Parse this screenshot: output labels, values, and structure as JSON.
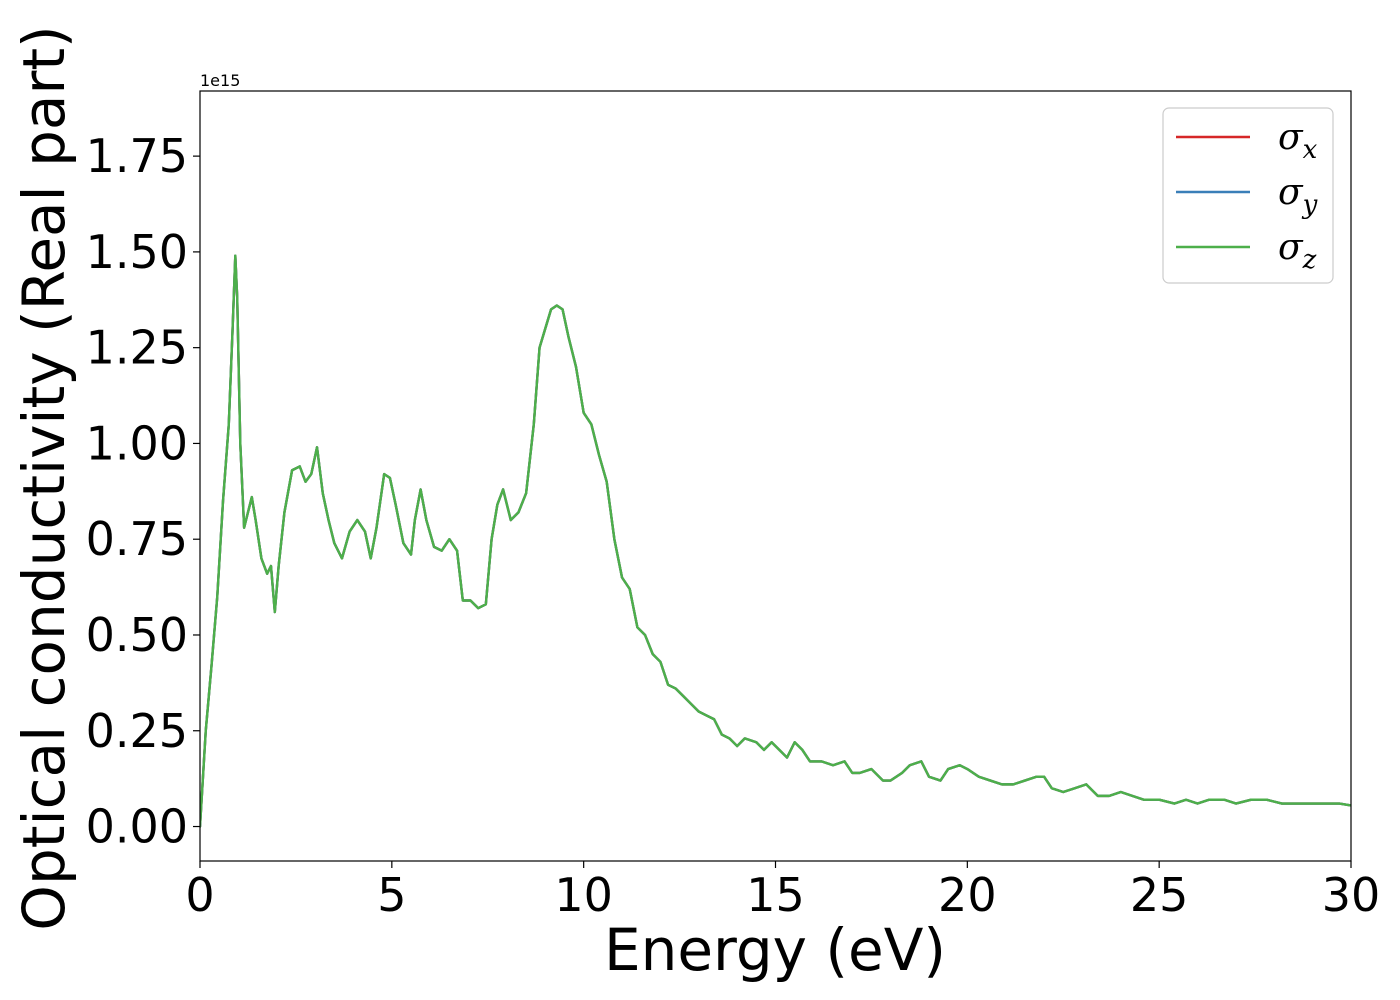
{
  "chart_data": {
    "type": "line",
    "title": "",
    "xlabel": "Energy (eV)",
    "ylabel": "Optical conductivity (Real part)",
    "y_offset_label": "1e15",
    "xlim": [
      0,
      30
    ],
    "ylim": [
      -0.09,
      1.92
    ],
    "x_ticks": [
      0,
      5,
      10,
      15,
      20,
      25,
      30
    ],
    "x_tick_labels": [
      "0",
      "5",
      "10",
      "15",
      "20",
      "25",
      "30"
    ],
    "y_ticks": [
      0.0,
      0.25,
      0.5,
      0.75,
      1.0,
      1.25,
      1.5,
      1.75
    ],
    "y_tick_labels": [
      "0.00",
      "0.25",
      "0.50",
      "0.75",
      "1.00",
      "1.25",
      "1.50",
      "1.75"
    ],
    "grid": false,
    "legend_position": "top-right",
    "legend": [
      {
        "symbol": "σ",
        "subscript": "x",
        "color": "#d62728"
      },
      {
        "symbol": "σ",
        "subscript": "y",
        "color": "#3a7fb8"
      },
      {
        "symbol": "σ",
        "subscript": "z",
        "color": "#4daf4a"
      }
    ],
    "x": [
      0,
      0.15,
      0.3,
      0.45,
      0.6,
      0.75,
      0.85,
      0.92,
      0.97,
      1.05,
      1.15,
      1.25,
      1.35,
      1.45,
      1.6,
      1.75,
      1.85,
      1.95,
      2.05,
      2.2,
      2.4,
      2.6,
      2.75,
      2.9,
      3.05,
      3.2,
      3.35,
      3.5,
      3.7,
      3.9,
      4.1,
      4.3,
      4.45,
      4.6,
      4.8,
      4.95,
      5.1,
      5.3,
      5.5,
      5.6,
      5.75,
      5.9,
      6.1,
      6.3,
      6.5,
      6.7,
      6.85,
      7.05,
      7.25,
      7.45,
      7.6,
      7.75,
      7.9,
      8.1,
      8.3,
      8.5,
      8.7,
      8.85,
      9.0,
      9.15,
      9.3,
      9.45,
      9.6,
      9.8,
      10.0,
      10.2,
      10.4,
      10.6,
      10.8,
      11.0,
      11.2,
      11.4,
      11.6,
      11.8,
      12.0,
      12.2,
      12.4,
      12.6,
      12.8,
      13.0,
      13.2,
      13.4,
      13.6,
      13.8,
      14.0,
      14.2,
      14.5,
      14.7,
      14.9,
      15.1,
      15.3,
      15.5,
      15.7,
      15.9,
      16.2,
      16.5,
      16.8,
      17.0,
      17.2,
      17.5,
      17.8,
      18.0,
      18.3,
      18.5,
      18.8,
      19.0,
      19.3,
      19.5,
      19.8,
      20.0,
      20.3,
      20.6,
      20.9,
      21.2,
      21.5,
      21.8,
      22.0,
      22.2,
      22.5,
      22.8,
      23.1,
      23.4,
      23.7,
      24.0,
      24.3,
      24.6,
      25.0,
      25.4,
      25.7,
      26.0,
      26.3,
      26.7,
      27.0,
      27.4,
      27.8,
      28.2,
      28.6,
      29.0,
      29.4,
      29.7,
      30.0
    ],
    "series": [
      {
        "name": "σx",
        "color": "#d62728",
        "values": [
          0.0,
          0.25,
          0.42,
          0.6,
          0.85,
          1.05,
          1.3,
          1.49,
          1.38,
          1.0,
          0.78,
          0.82,
          0.86,
          0.8,
          0.7,
          0.66,
          0.68,
          0.56,
          0.68,
          0.82,
          0.93,
          0.94,
          0.9,
          0.92,
          0.99,
          0.87,
          0.8,
          0.74,
          0.7,
          0.77,
          0.8,
          0.77,
          0.7,
          0.78,
          0.92,
          0.91,
          0.84,
          0.74,
          0.71,
          0.8,
          0.88,
          0.8,
          0.73,
          0.72,
          0.75,
          0.72,
          0.59,
          0.59,
          0.57,
          0.58,
          0.75,
          0.84,
          0.88,
          0.8,
          0.82,
          0.87,
          1.05,
          1.25,
          1.3,
          1.35,
          1.36,
          1.35,
          1.28,
          1.2,
          1.08,
          1.05,
          0.97,
          0.9,
          0.75,
          0.65,
          0.62,
          0.52,
          0.5,
          0.45,
          0.43,
          0.37,
          0.36,
          0.34,
          0.32,
          0.3,
          0.29,
          0.28,
          0.24,
          0.23,
          0.21,
          0.23,
          0.22,
          0.2,
          0.22,
          0.2,
          0.18,
          0.22,
          0.2,
          0.17,
          0.17,
          0.16,
          0.17,
          0.14,
          0.14,
          0.15,
          0.12,
          0.12,
          0.14,
          0.16,
          0.17,
          0.13,
          0.12,
          0.15,
          0.16,
          0.15,
          0.13,
          0.12,
          0.11,
          0.11,
          0.12,
          0.13,
          0.13,
          0.1,
          0.09,
          0.1,
          0.11,
          0.08,
          0.08,
          0.09,
          0.08,
          0.07,
          0.07,
          0.06,
          0.07,
          0.06,
          0.07,
          0.07,
          0.06,
          0.07,
          0.07,
          0.06,
          0.06,
          0.06,
          0.06,
          0.06,
          0.055
        ]
      },
      {
        "name": "σy",
        "color": "#3a7fb8",
        "values": [
          0.0,
          0.25,
          0.42,
          0.6,
          0.85,
          1.05,
          1.3,
          1.49,
          1.38,
          1.0,
          0.78,
          0.82,
          0.86,
          0.8,
          0.7,
          0.66,
          0.68,
          0.56,
          0.68,
          0.82,
          0.93,
          0.94,
          0.9,
          0.92,
          0.99,
          0.87,
          0.8,
          0.74,
          0.7,
          0.77,
          0.8,
          0.77,
          0.7,
          0.78,
          0.92,
          0.91,
          0.84,
          0.74,
          0.71,
          0.8,
          0.88,
          0.8,
          0.73,
          0.72,
          0.75,
          0.72,
          0.59,
          0.59,
          0.57,
          0.58,
          0.75,
          0.84,
          0.88,
          0.8,
          0.82,
          0.87,
          1.05,
          1.25,
          1.3,
          1.35,
          1.36,
          1.35,
          1.28,
          1.2,
          1.08,
          1.05,
          0.97,
          0.9,
          0.75,
          0.65,
          0.62,
          0.52,
          0.5,
          0.45,
          0.43,
          0.37,
          0.36,
          0.34,
          0.32,
          0.3,
          0.29,
          0.28,
          0.24,
          0.23,
          0.21,
          0.23,
          0.22,
          0.2,
          0.22,
          0.2,
          0.18,
          0.22,
          0.2,
          0.17,
          0.17,
          0.16,
          0.17,
          0.14,
          0.14,
          0.15,
          0.12,
          0.12,
          0.14,
          0.16,
          0.17,
          0.13,
          0.12,
          0.15,
          0.16,
          0.15,
          0.13,
          0.12,
          0.11,
          0.11,
          0.12,
          0.13,
          0.13,
          0.1,
          0.09,
          0.1,
          0.11,
          0.08,
          0.08,
          0.09,
          0.08,
          0.07,
          0.07,
          0.06,
          0.07,
          0.06,
          0.07,
          0.07,
          0.06,
          0.07,
          0.07,
          0.06,
          0.06,
          0.06,
          0.06,
          0.06,
          0.055
        ]
      },
      {
        "name": "σz",
        "color": "#4daf4a",
        "values": [
          0.0,
          0.25,
          0.42,
          0.6,
          0.85,
          1.05,
          1.3,
          1.49,
          1.38,
          1.0,
          0.78,
          0.82,
          0.86,
          0.8,
          0.7,
          0.66,
          0.68,
          0.56,
          0.68,
          0.82,
          0.93,
          0.94,
          0.9,
          0.92,
          0.99,
          0.87,
          0.8,
          0.74,
          0.7,
          0.77,
          0.8,
          0.77,
          0.7,
          0.78,
          0.92,
          0.91,
          0.84,
          0.74,
          0.71,
          0.8,
          0.88,
          0.8,
          0.73,
          0.72,
          0.75,
          0.72,
          0.59,
          0.59,
          0.57,
          0.58,
          0.75,
          0.84,
          0.88,
          0.8,
          0.82,
          0.87,
          1.05,
          1.25,
          1.3,
          1.35,
          1.36,
          1.35,
          1.28,
          1.2,
          1.08,
          1.05,
          0.97,
          0.9,
          0.75,
          0.65,
          0.62,
          0.52,
          0.5,
          0.45,
          0.43,
          0.37,
          0.36,
          0.34,
          0.32,
          0.3,
          0.29,
          0.28,
          0.24,
          0.23,
          0.21,
          0.23,
          0.22,
          0.2,
          0.22,
          0.2,
          0.18,
          0.22,
          0.2,
          0.17,
          0.17,
          0.16,
          0.17,
          0.14,
          0.14,
          0.15,
          0.12,
          0.12,
          0.14,
          0.16,
          0.17,
          0.13,
          0.12,
          0.15,
          0.16,
          0.15,
          0.13,
          0.12,
          0.11,
          0.11,
          0.12,
          0.13,
          0.13,
          0.1,
          0.09,
          0.1,
          0.11,
          0.08,
          0.08,
          0.09,
          0.08,
          0.07,
          0.07,
          0.06,
          0.07,
          0.06,
          0.07,
          0.07,
          0.06,
          0.07,
          0.07,
          0.06,
          0.06,
          0.06,
          0.06,
          0.06,
          0.055
        ]
      }
    ]
  }
}
